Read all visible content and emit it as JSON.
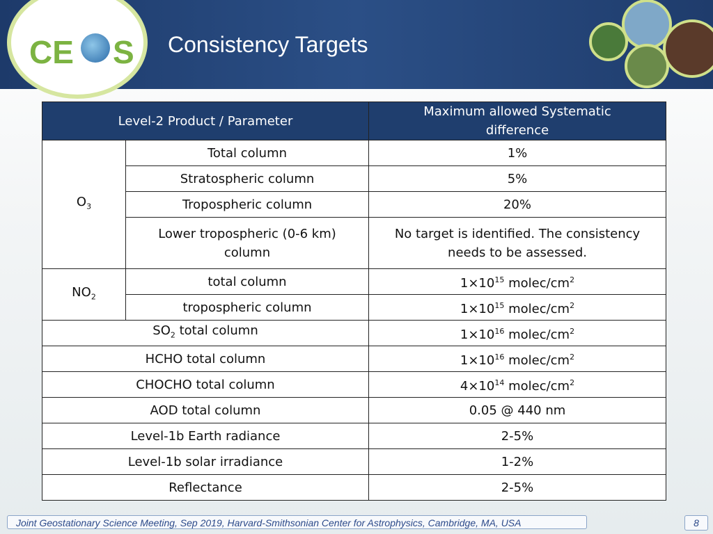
{
  "header": {
    "title": "Consistency Targets",
    "logo": {
      "left": "CE",
      "right": "S"
    }
  },
  "table": {
    "columns": [
      "Level-2 Product / Parameter",
      "Maximum allowed Systematic difference"
    ],
    "groups": [
      {
        "species": [
          {
            "t": "O"
          },
          {
            "sub": "3"
          }
        ],
        "rows": [
          {
            "parameter": "Total column",
            "target": "1%"
          },
          {
            "parameter": "Stratospheric column",
            "target": "5%"
          },
          {
            "parameter": "Tropospheric column",
            "target": "20%"
          },
          {
            "parameter": "Lower tropospheric (0-6 km) column",
            "target": "No target is identified. The consistency needs to be assessed."
          }
        ]
      },
      {
        "species": [
          {
            "t": "NO"
          },
          {
            "sub": "2"
          }
        ],
        "rows": [
          {
            "parameter": "total column",
            "target": [
              {
                "t": "1×10"
              },
              {
                "sup": "15"
              },
              {
                "t": " molec/cm"
              },
              {
                "sup": "2"
              }
            ]
          },
          {
            "parameter": "tropospheric column",
            "target": [
              {
                "t": "1×10"
              },
              {
                "sup": "15"
              },
              {
                "t": " molec/cm"
              },
              {
                "sup": "2"
              }
            ]
          }
        ]
      }
    ],
    "rows": [
      {
        "parameter": [
          {
            "t": "SO"
          },
          {
            "sub": "2"
          },
          {
            "t": " total column"
          }
        ],
        "target": [
          {
            "t": "1×10"
          },
          {
            "sup": "16"
          },
          {
            "t": " molec/cm"
          },
          {
            "sup": "2"
          }
        ]
      },
      {
        "parameter": "HCHO total column",
        "target": [
          {
            "t": "1×10"
          },
          {
            "sup": "16"
          },
          {
            "t": " molec/cm"
          },
          {
            "sup": "2"
          }
        ]
      },
      {
        "parameter": "CHOCHO total column",
        "target": [
          {
            "t": "4×10"
          },
          {
            "sup": "14"
          },
          {
            "t": " molec/cm"
          },
          {
            "sup": "2"
          }
        ]
      },
      {
        "parameter": "AOD total column",
        "target": "0.05 @ 440 nm"
      },
      {
        "parameter": "Level-1b Earth radiance",
        "target": "2-5%"
      },
      {
        "parameter": "Level-1b solar irradiance",
        "target": "1-2%"
      },
      {
        "parameter": "Reflectance",
        "target": "2-5%"
      }
    ]
  },
  "footer": {
    "text": "Joint Geostationary Science Meeting,  Sep 2019, Harvard-Smithsonian Center for Astrophysics, Cambridge, MA, USA",
    "page": "8"
  }
}
